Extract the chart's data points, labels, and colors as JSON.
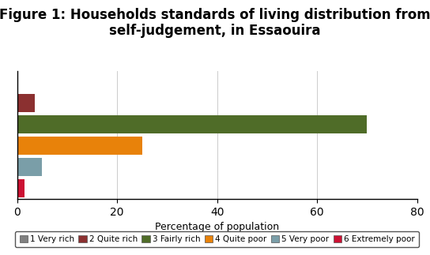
{
  "title": "Figure 1: Households standards of living distribution from\nself-judgement, in Essaouira",
  "xlabel": "Percentage of population",
  "bars": [
    {
      "label": "1 Very rich",
      "value": 0.0,
      "color": "#808080"
    },
    {
      "label": "2 Quite rich",
      "value": 3.5,
      "color": "#8B3030"
    },
    {
      "label": "3 Fairly rich",
      "value": 70.0,
      "color": "#4F6C28"
    },
    {
      "label": "4 Quite poor",
      "value": 25.0,
      "color": "#E8820A"
    },
    {
      "label": "5 Very poor",
      "value": 5.0,
      "color": "#7A9EA8"
    },
    {
      "label": "6 Extremely poor",
      "value": 1.5,
      "color": "#CC1133"
    }
  ],
  "xlim": [
    0,
    80
  ],
  "xticks": [
    0,
    20,
    40,
    60,
    80
  ],
  "background_color": "#ffffff",
  "title_fontsize": 12,
  "xlabel_fontsize": 9,
  "legend_fontsize": 7.5,
  "bar_height": 0.85,
  "grid_color": "#cccccc",
  "spine_color": "#000000"
}
